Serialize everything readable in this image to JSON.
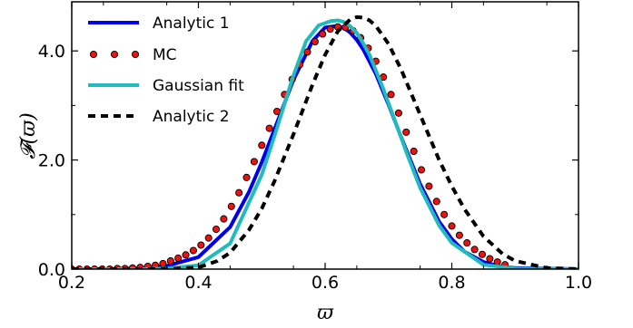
{
  "chart_data": {
    "type": "line",
    "xlabel": "ϖ",
    "ylabel": "𝓕(ϖ)",
    "xlim": [
      0.2,
      1.0
    ],
    "ylim": [
      0.0,
      4.9
    ],
    "xticks": [
      0.2,
      0.4,
      0.6,
      0.8,
      1.0
    ],
    "xtick_labels": [
      "0.2",
      "0.4",
      "0.6",
      "0.8",
      "1.0"
    ],
    "yticks": [
      0.0,
      2.0,
      4.0
    ],
    "ytick_labels": [
      "0.0",
      "2.0",
      "4.0"
    ],
    "grid": false,
    "legend_position": "top-left",
    "series": [
      {
        "name": "Analytic 1",
        "style": "solid",
        "color": "#0000ee",
        "x": [
          0.2,
          0.25,
          0.3,
          0.35,
          0.4,
          0.45,
          0.48,
          0.5,
          0.52,
          0.55,
          0.58,
          0.6,
          0.62,
          0.63,
          0.64,
          0.65,
          0.66,
          0.68,
          0.7,
          0.72,
          0.75,
          0.78,
          0.8,
          0.82,
          0.85,
          0.88,
          0.9,
          1.0
        ],
        "y": [
          0.0,
          0.0,
          0.01,
          0.06,
          0.22,
          0.77,
          1.42,
          1.96,
          2.56,
          3.47,
          4.18,
          4.43,
          4.46,
          4.42,
          4.33,
          4.2,
          4.03,
          3.58,
          3.02,
          2.42,
          1.56,
          0.87,
          0.55,
          0.32,
          0.13,
          0.04,
          0.02,
          0.0
        ]
      },
      {
        "name": "MC",
        "style": "markers",
        "color": "#ee1111",
        "x": [
          0.2,
          0.212,
          0.224,
          0.236,
          0.248,
          0.26,
          0.272,
          0.284,
          0.296,
          0.308,
          0.32,
          0.332,
          0.344,
          0.356,
          0.368,
          0.38,
          0.392,
          0.404,
          0.416,
          0.428,
          0.44,
          0.452,
          0.464,
          0.476,
          0.488,
          0.5,
          0.512,
          0.524,
          0.536,
          0.548,
          0.56,
          0.572,
          0.584,
          0.596,
          0.608,
          0.62,
          0.632,
          0.644,
          0.656,
          0.668,
          0.68,
          0.692,
          0.704,
          0.716,
          0.728,
          0.74,
          0.752,
          0.764,
          0.776,
          0.788,
          0.8,
          0.812,
          0.824,
          0.836,
          0.848,
          0.86,
          0.872,
          0.884
        ],
        "y": [
          0.0,
          0.0,
          0.0,
          0.0,
          0.0,
          0.0,
          0.01,
          0.01,
          0.02,
          0.03,
          0.05,
          0.07,
          0.1,
          0.15,
          0.2,
          0.26,
          0.34,
          0.44,
          0.57,
          0.73,
          0.92,
          1.15,
          1.4,
          1.68,
          1.97,
          2.27,
          2.58,
          2.89,
          3.2,
          3.48,
          3.75,
          3.98,
          4.17,
          4.31,
          4.4,
          4.44,
          4.43,
          4.37,
          4.24,
          4.05,
          3.81,
          3.52,
          3.2,
          2.86,
          2.51,
          2.16,
          1.82,
          1.52,
          1.24,
          1.0,
          0.79,
          0.62,
          0.48,
          0.36,
          0.27,
          0.19,
          0.13,
          0.08
        ]
      },
      {
        "name": "Gaussian fit",
        "style": "solid",
        "color": "#22bbbb",
        "x": [
          0.2,
          0.3,
          0.35,
          0.4,
          0.45,
          0.5,
          0.52,
          0.55,
          0.57,
          0.59,
          0.6,
          0.61,
          0.62,
          0.63,
          0.64,
          0.65,
          0.66,
          0.67,
          0.69,
          0.71,
          0.73,
          0.75,
          0.78,
          0.8,
          0.85,
          0.9,
          1.0
        ],
        "y": [
          0.0,
          0.0,
          0.01,
          0.07,
          0.47,
          1.73,
          2.44,
          3.55,
          4.18,
          4.47,
          4.51,
          4.55,
          4.56,
          4.53,
          4.45,
          4.33,
          4.14,
          3.93,
          3.36,
          2.73,
          2.09,
          1.49,
          0.8,
          0.48,
          0.08,
          0.01,
          0.0
        ]
      },
      {
        "name": "Analytic 2",
        "style": "dashed",
        "color": "#000000",
        "x": [
          0.2,
          0.35,
          0.4,
          0.43,
          0.45,
          0.48,
          0.5,
          0.52,
          0.55,
          0.58,
          0.6,
          0.62,
          0.64,
          0.65,
          0.66,
          0.67,
          0.68,
          0.7,
          0.72,
          0.75,
          0.78,
          0.8,
          0.82,
          0.85,
          0.88,
          0.9,
          0.95,
          1.0
        ],
        "y": [
          0.0,
          0.0,
          0.03,
          0.15,
          0.3,
          0.72,
          1.11,
          1.61,
          2.47,
          3.38,
          3.93,
          4.36,
          4.58,
          4.62,
          4.61,
          4.56,
          4.46,
          4.13,
          3.66,
          2.83,
          2.0,
          1.52,
          1.1,
          0.6,
          0.28,
          0.15,
          0.02,
          0.0
        ]
      }
    ]
  }
}
